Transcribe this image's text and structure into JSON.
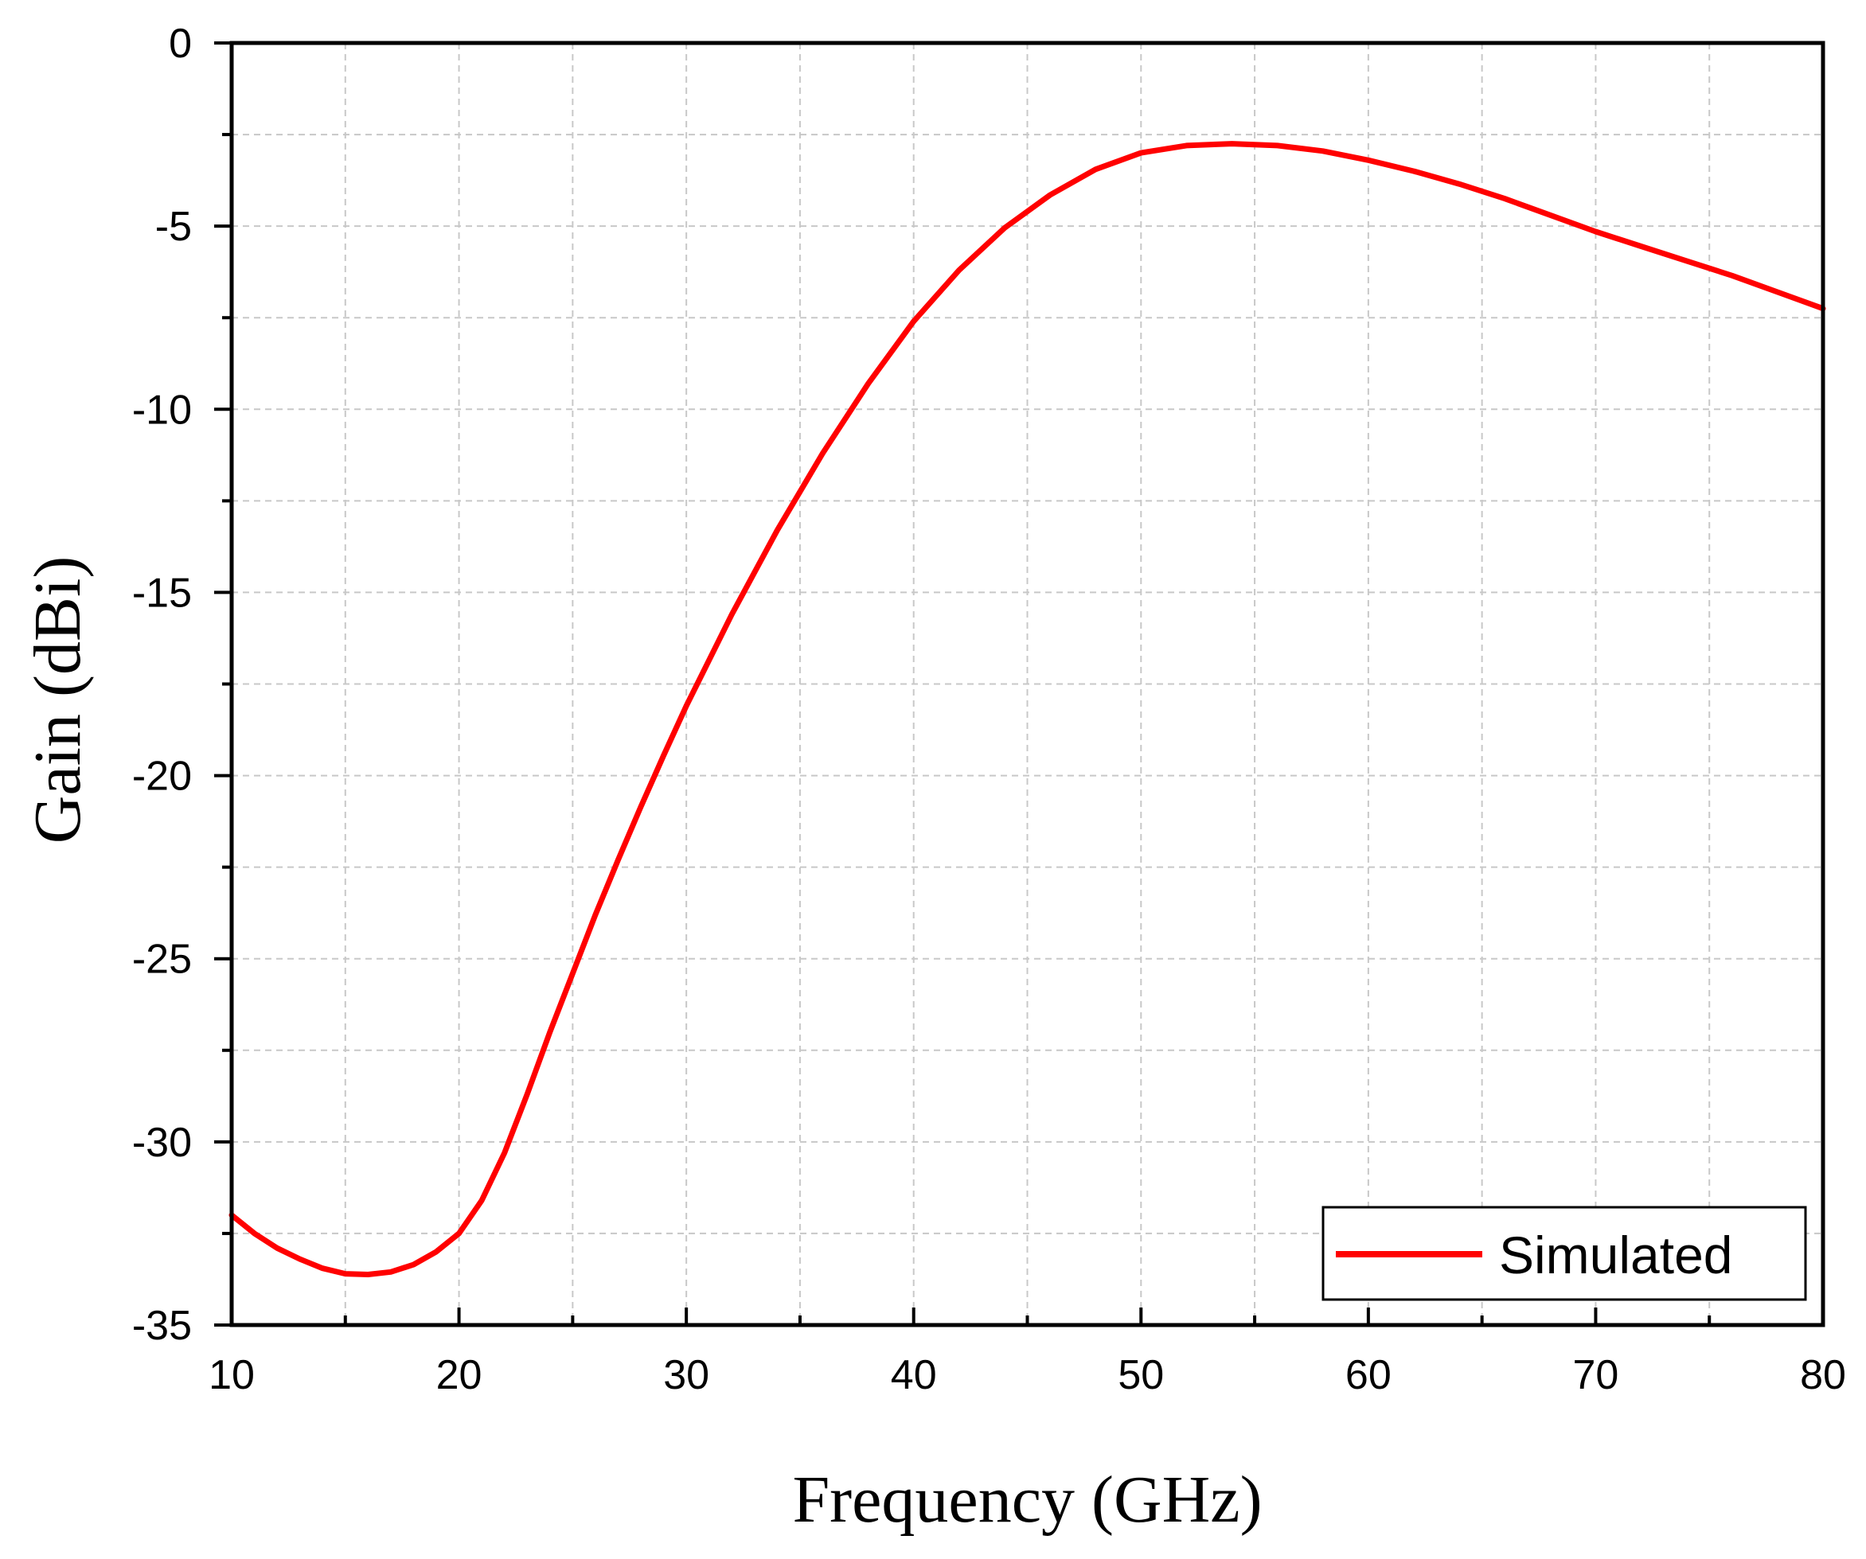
{
  "chart_data": {
    "type": "line",
    "title": "",
    "xlabel": "Frequency (GHz)",
    "ylabel": "Gain (dBi)",
    "xlim": [
      10,
      80
    ],
    "ylim": [
      -35,
      0
    ],
    "xticks": [
      10,
      20,
      30,
      40,
      50,
      60,
      70,
      80
    ],
    "yticks": [
      0,
      -5,
      -10,
      -15,
      -20,
      -25,
      -30,
      -35
    ],
    "xtick_labels": [
      "10",
      "20",
      "30",
      "40",
      "50",
      "60",
      "70",
      "80"
    ],
    "ytick_labels": [
      "0",
      "-5",
      "-10",
      "-15",
      "-20",
      "-25",
      "-30",
      "-35"
    ],
    "x_minor_step": 5,
    "y_minor_step": 2.5,
    "grid": true,
    "legend_position": "bottom-right",
    "series": [
      {
        "name": "Simulated",
        "color": "#ff0000",
        "x": [
          10,
          11,
          12,
          13,
          14,
          15,
          16,
          17,
          18,
          19,
          20,
          21,
          22,
          23,
          24,
          25,
          26,
          27,
          28,
          29,
          30,
          32,
          34,
          36,
          38,
          40,
          42,
          44,
          46,
          48,
          50,
          52,
          54,
          56,
          58,
          60,
          62,
          64,
          66,
          68,
          70,
          72,
          74,
          76,
          78,
          80
        ],
        "values": [
          -32.0,
          -32.5,
          -32.9,
          -33.2,
          -33.45,
          -33.6,
          -33.62,
          -33.55,
          -33.35,
          -33.0,
          -32.5,
          -31.6,
          -30.3,
          -28.7,
          -27.0,
          -25.4,
          -23.8,
          -22.3,
          -20.85,
          -19.45,
          -18.1,
          -15.6,
          -13.3,
          -11.2,
          -9.3,
          -7.6,
          -6.2,
          -5.05,
          -4.15,
          -3.45,
          -3.0,
          -2.8,
          -2.75,
          -2.8,
          -2.95,
          -3.2,
          -3.5,
          -3.85,
          -4.25,
          -4.7,
          -5.15,
          -5.55,
          -5.95,
          -6.35,
          -6.8,
          -7.25
        ]
      }
    ]
  }
}
